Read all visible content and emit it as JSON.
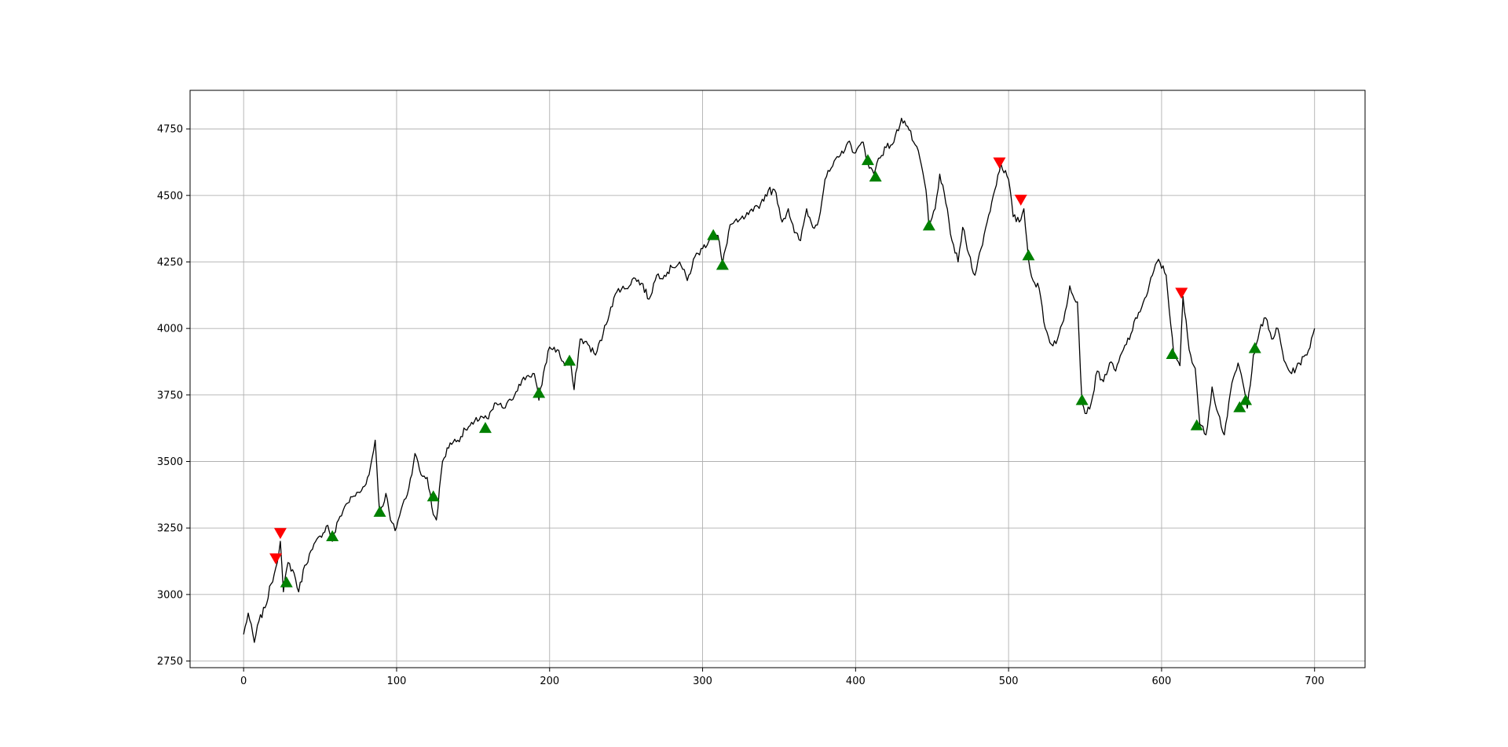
{
  "chart_data": {
    "type": "line",
    "title": "",
    "xlabel": "",
    "ylabel": "",
    "xlim": [
      -35,
      733
    ],
    "ylim": [
      2725,
      4895
    ],
    "grid": true,
    "xticks": [
      0,
      100,
      200,
      300,
      400,
      500,
      600,
      700
    ],
    "yticks": [
      2750,
      3000,
      3250,
      3500,
      3750,
      4000,
      4250,
      4500,
      4750
    ],
    "xtick_labels": [
      "0",
      "100",
      "200",
      "300",
      "400",
      "500",
      "600",
      "700"
    ],
    "ytick_labels": [
      "2750",
      "3000",
      "3250",
      "3500",
      "3750",
      "4000",
      "4250",
      "4500",
      "4750"
    ],
    "colors": {
      "line": "#000000",
      "buy": "#008000",
      "sell": "#ff0000",
      "grid": "#b0b0b0"
    },
    "series": [
      {
        "kind": "price-line",
        "anchors": [
          [
            0,
            2850
          ],
          [
            3,
            2930
          ],
          [
            7,
            2820
          ],
          [
            10,
            2900
          ],
          [
            14,
            2950
          ],
          [
            18,
            3040
          ],
          [
            21,
            3100
          ],
          [
            24,
            3200
          ],
          [
            26,
            3010
          ],
          [
            29,
            3120
          ],
          [
            33,
            3080
          ],
          [
            36,
            3010
          ],
          [
            40,
            3110
          ],
          [
            45,
            3170
          ],
          [
            50,
            3220
          ],
          [
            55,
            3260
          ],
          [
            58,
            3200
          ],
          [
            62,
            3280
          ],
          [
            67,
            3340
          ],
          [
            72,
            3370
          ],
          [
            77,
            3390
          ],
          [
            82,
            3450
          ],
          [
            86,
            3580
          ],
          [
            89,
            3300
          ],
          [
            93,
            3380
          ],
          [
            96,
            3280
          ],
          [
            99,
            3240
          ],
          [
            103,
            3320
          ],
          [
            108,
            3400
          ],
          [
            112,
            3530
          ],
          [
            116,
            3450
          ],
          [
            120,
            3440
          ],
          [
            124,
            3300
          ],
          [
            126,
            3280
          ],
          [
            130,
            3500
          ],
          [
            135,
            3570
          ],
          [
            140,
            3580
          ],
          [
            145,
            3620
          ],
          [
            150,
            3640
          ],
          [
            155,
            3670
          ],
          [
            160,
            3660
          ],
          [
            165,
            3720
          ],
          [
            170,
            3700
          ],
          [
            175,
            3730
          ],
          [
            180,
            3790
          ],
          [
            185,
            3820
          ],
          [
            190,
            3830
          ],
          [
            193,
            3730
          ],
          [
            197,
            3860
          ],
          [
            200,
            3930
          ],
          [
            205,
            3920
          ],
          [
            210,
            3860
          ],
          [
            213,
            3890
          ],
          [
            216,
            3770
          ],
          [
            220,
            3960
          ],
          [
            225,
            3940
          ],
          [
            230,
            3900
          ],
          [
            235,
            3980
          ],
          [
            240,
            4080
          ],
          [
            245,
            4150
          ],
          [
            250,
            4150
          ],
          [
            255,
            4190
          ],
          [
            260,
            4170
          ],
          [
            265,
            4110
          ],
          [
            270,
            4200
          ],
          [
            275,
            4200
          ],
          [
            280,
            4230
          ],
          [
            285,
            4250
          ],
          [
            290,
            4180
          ],
          [
            295,
            4270
          ],
          [
            300,
            4300
          ],
          [
            305,
            4340
          ],
          [
            310,
            4350
          ],
          [
            313,
            4240
          ],
          [
            318,
            4390
          ],
          [
            323,
            4400
          ],
          [
            328,
            4420
          ],
          [
            333,
            4440
          ],
          [
            338,
            4470
          ],
          [
            343,
            4520
          ],
          [
            348,
            4510
          ],
          [
            352,
            4400
          ],
          [
            356,
            4450
          ],
          [
            360,
            4360
          ],
          [
            364,
            4330
          ],
          [
            368,
            4450
          ],
          [
            372,
            4380
          ],
          [
            376,
            4410
          ],
          [
            380,
            4560
          ],
          [
            385,
            4610
          ],
          [
            390,
            4650
          ],
          [
            395,
            4700
          ],
          [
            400,
            4660
          ],
          [
            405,
            4700
          ],
          [
            408,
            4620
          ],
          [
            412,
            4580
          ],
          [
            415,
            4640
          ],
          [
            420,
            4680
          ],
          [
            425,
            4700
          ],
          [
            430,
            4790
          ],
          [
            434,
            4760
          ],
          [
            438,
            4700
          ],
          [
            442,
            4640
          ],
          [
            446,
            4520
          ],
          [
            448,
            4380
          ],
          [
            452,
            4450
          ],
          [
            455,
            4580
          ],
          [
            459,
            4470
          ],
          [
            463,
            4330
          ],
          [
            467,
            4250
          ],
          [
            470,
            4380
          ],
          [
            474,
            4280
          ],
          [
            478,
            4200
          ],
          [
            482,
            4300
          ],
          [
            486,
            4400
          ],
          [
            490,
            4500
          ],
          [
            495,
            4620
          ],
          [
            500,
            4560
          ],
          [
            503,
            4420
          ],
          [
            507,
            4400
          ],
          [
            510,
            4450
          ],
          [
            513,
            4260
          ],
          [
            516,
            4180
          ],
          [
            520,
            4150
          ],
          [
            524,
            4000
          ],
          [
            528,
            3940
          ],
          [
            532,
            3960
          ],
          [
            536,
            4030
          ],
          [
            540,
            4160
          ],
          [
            545,
            4100
          ],
          [
            548,
            3720
          ],
          [
            551,
            3680
          ],
          [
            554,
            3720
          ],
          [
            558,
            3840
          ],
          [
            562,
            3800
          ],
          [
            566,
            3870
          ],
          [
            570,
            3840
          ],
          [
            575,
            3920
          ],
          [
            580,
            3980
          ],
          [
            585,
            4060
          ],
          [
            590,
            4120
          ],
          [
            594,
            4200
          ],
          [
            598,
            4260
          ],
          [
            603,
            4200
          ],
          [
            608,
            3900
          ],
          [
            612,
            3860
          ],
          [
            614,
            4120
          ],
          [
            618,
            3920
          ],
          [
            622,
            3850
          ],
          [
            625,
            3640
          ],
          [
            629,
            3600
          ],
          [
            633,
            3780
          ],
          [
            637,
            3680
          ],
          [
            641,
            3600
          ],
          [
            645,
            3760
          ],
          [
            650,
            3870
          ],
          [
            653,
            3800
          ],
          [
            656,
            3700
          ],
          [
            660,
            3900
          ],
          [
            664,
            3990
          ],
          [
            668,
            4040
          ],
          [
            672,
            3960
          ],
          [
            676,
            4000
          ],
          [
            680,
            3880
          ],
          [
            685,
            3830
          ],
          [
            690,
            3870
          ],
          [
            695,
            3900
          ],
          [
            700,
            4000
          ]
        ]
      },
      {
        "kind": "buy-signals",
        "points": [
          [
            28,
            3045
          ],
          [
            58,
            3218
          ],
          [
            89,
            3310
          ],
          [
            124,
            3368
          ],
          [
            158,
            3625
          ],
          [
            193,
            3757
          ],
          [
            213,
            3878
          ],
          [
            307,
            4350
          ],
          [
            313,
            4238
          ],
          [
            408,
            4632
          ],
          [
            413,
            4570
          ],
          [
            448,
            4386
          ],
          [
            513,
            4274
          ],
          [
            548,
            3730
          ],
          [
            607,
            3903
          ],
          [
            623,
            3635
          ],
          [
            651,
            3703
          ],
          [
            655,
            3730
          ],
          [
            661,
            3925
          ]
        ]
      },
      {
        "kind": "sell-signals",
        "points": [
          [
            21,
            3137
          ],
          [
            24,
            3232
          ],
          [
            494,
            4625
          ],
          [
            508,
            4485
          ],
          [
            613,
            4135
          ]
        ]
      }
    ]
  }
}
